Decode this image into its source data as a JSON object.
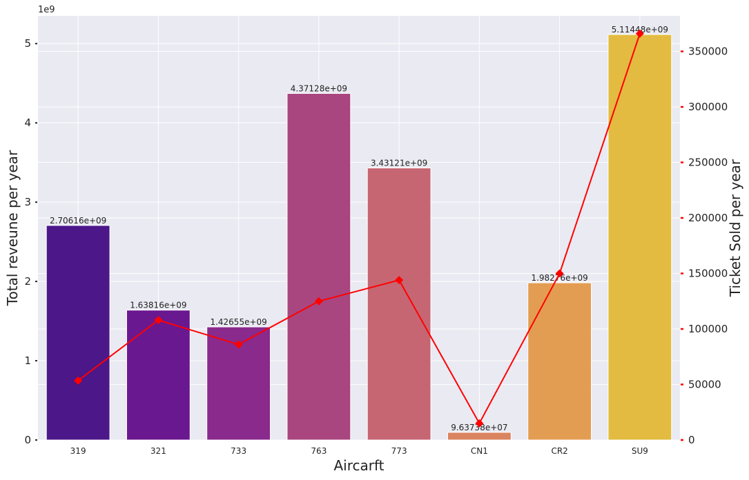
{
  "chart_data": {
    "type": "bar+line",
    "categories": [
      "319",
      "321",
      "733",
      "763",
      "773",
      "CN1",
      "CR2",
      "SU9"
    ],
    "bar_series": {
      "values": [
        2706160000,
        1638160000,
        1426550000,
        4371280000,
        3431210000,
        96373800,
        1982760000,
        5114480000
      ],
      "labels": [
        "2.70616e+09",
        "1.63816e+09",
        "1.42655e+09",
        "4.37128e+09",
        "3.43121e+09",
        "9.63738e+07",
        "1.98276e+09",
        "5.11448e+09"
      ],
      "colors": [
        "#4b1789",
        "#6a1890",
        "#8a2a8c",
        "#a9467f",
        "#c66672",
        "#da8460",
        "#e39d52",
        "#e2bb40"
      ]
    },
    "line_series": {
      "values": [
        53500,
        108000,
        86000,
        125000,
        144000,
        15000,
        150000,
        366000
      ],
      "color": "#ff0000"
    },
    "xlabel": "Aircarft",
    "ylabel_left": "Total reveune per year",
    "ylabel_right": "Ticket Sold per year",
    "left_offset_text": "1e9",
    "ylim_left": [
      0,
      5.35
    ],
    "ylim_right": [
      0,
      382000
    ],
    "left_ticks": [
      0,
      1,
      2,
      3,
      4,
      5
    ],
    "left_tick_labels": [
      "0",
      "1",
      "2",
      "3",
      "4",
      "5"
    ],
    "right_ticks": [
      0,
      50000,
      100000,
      150000,
      200000,
      250000,
      300000,
      350000
    ],
    "right_tick_labels": [
      "0",
      "50000",
      "100000",
      "150000",
      "200000",
      "250000",
      "300000",
      "350000"
    ],
    "grid": true,
    "background": "#eaeaf2",
    "right_tick_color": "#ff0000"
  }
}
